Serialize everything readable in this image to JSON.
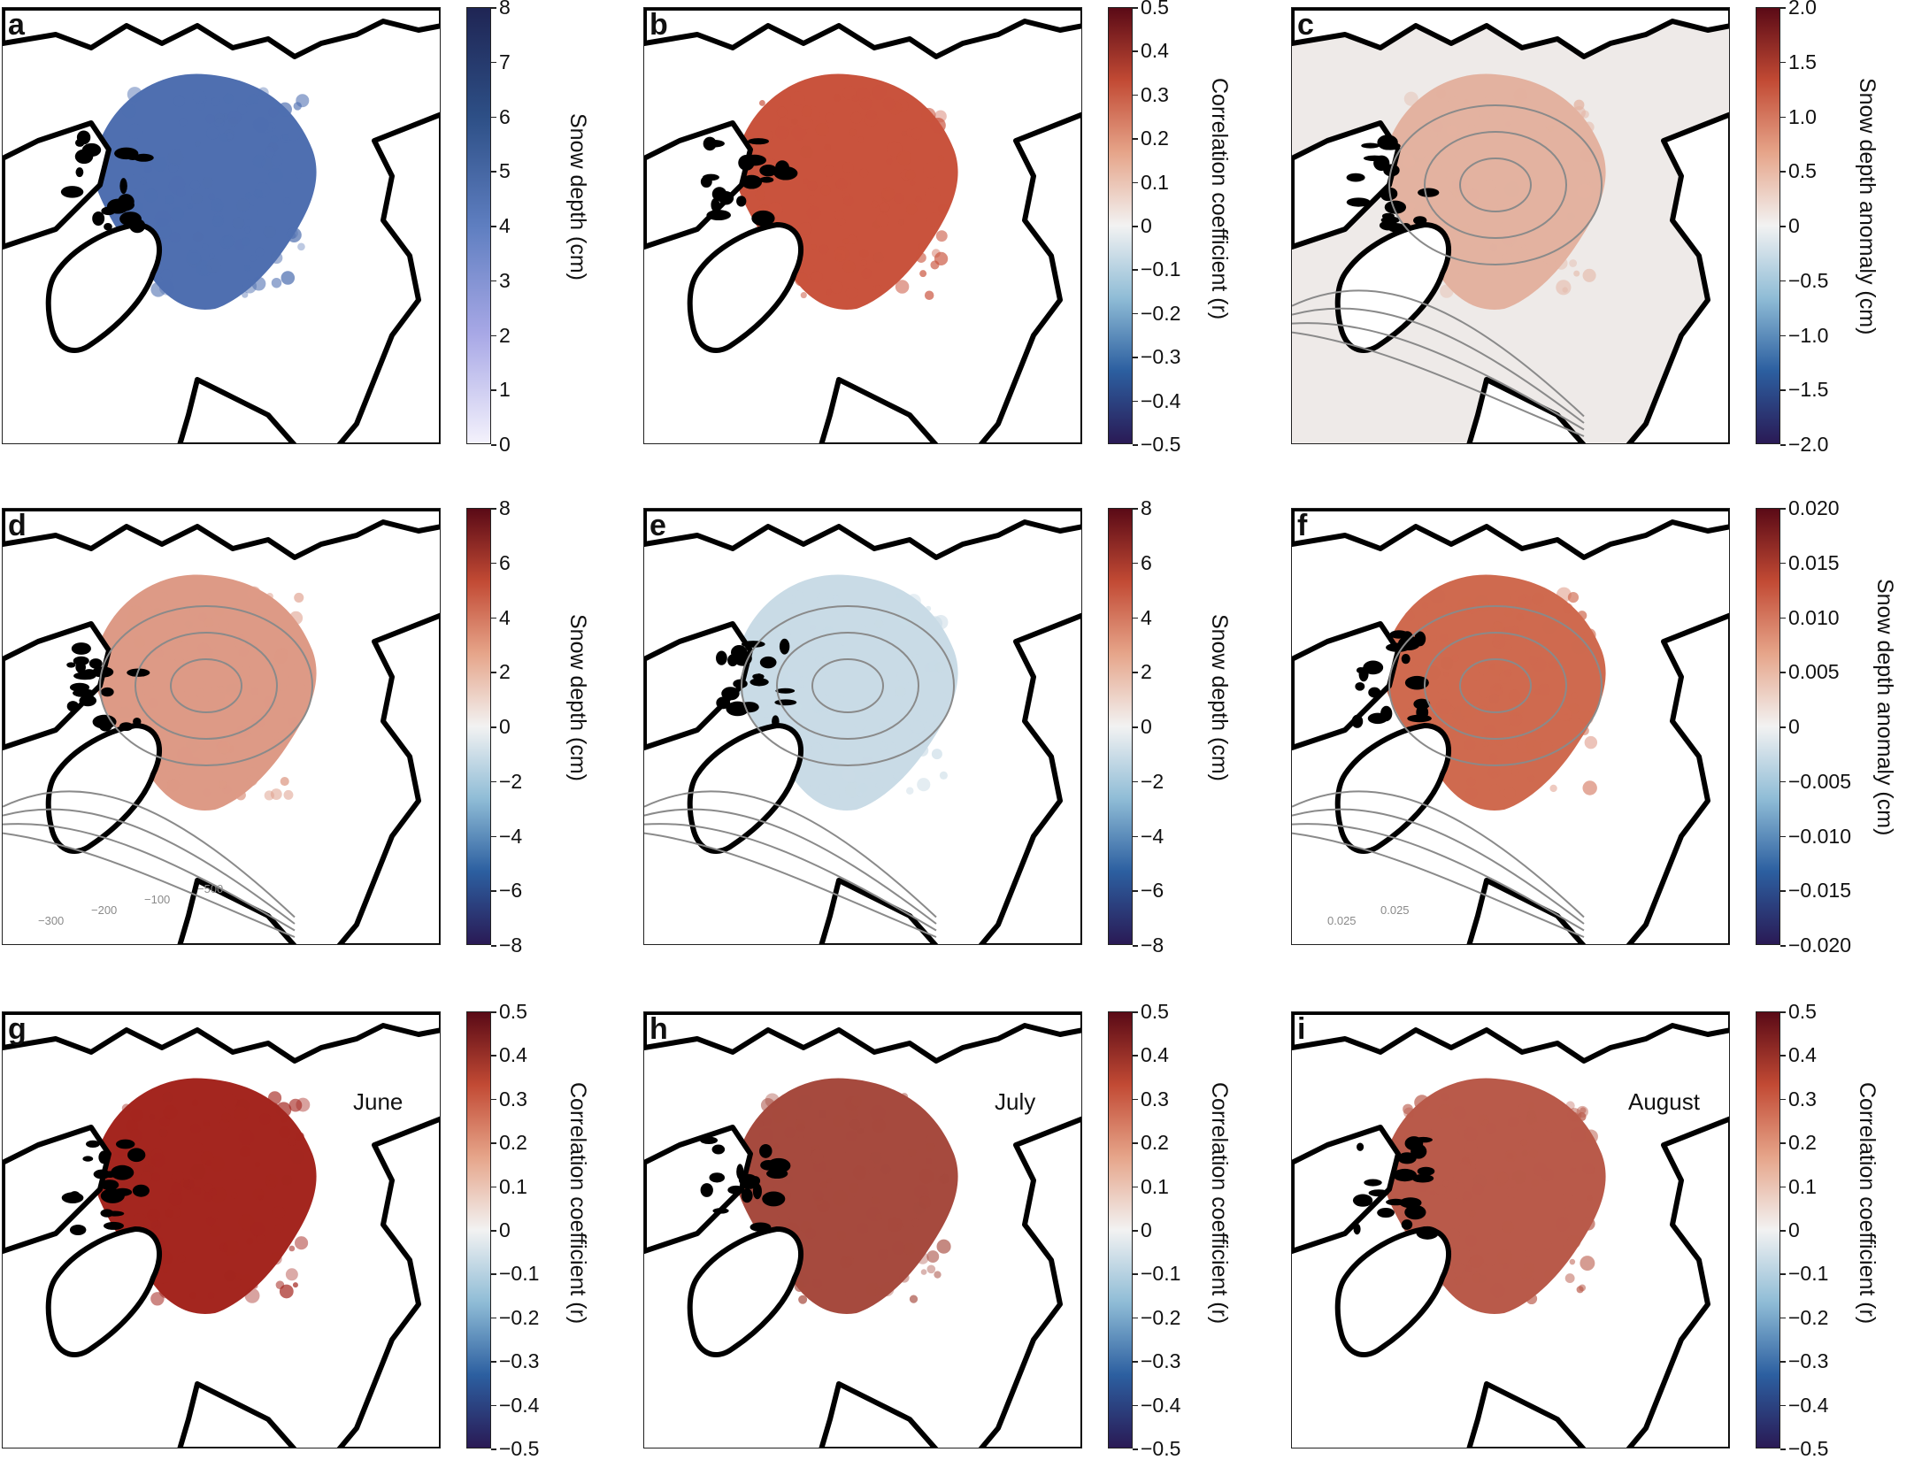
{
  "panels": [
    {
      "id": "a",
      "label": "a",
      "cbar": {
        "type": "sequential",
        "label": "Snow depth (cm)",
        "ticks": [
          "8",
          "7",
          "6",
          "5",
          "4",
          "3",
          "2",
          "1",
          "0"
        ],
        "colors": [
          "#1f2554",
          "#2d4f86",
          "#5e7ec0",
          "#a8a8e6",
          "#f4f2fc"
        ]
      },
      "contours": false,
      "month": ""
    },
    {
      "id": "b",
      "label": "b",
      "cbar": {
        "type": "diverging",
        "label": "Correlation coefficient (r)",
        "ticks": [
          "0.5",
          "0.4",
          "0.3",
          "0.2",
          "0.1",
          "0",
          "−0.1",
          "−0.2",
          "−0.3",
          "−0.4",
          "−0.5"
        ]
      },
      "contours": false,
      "month": ""
    },
    {
      "id": "c",
      "label": "c",
      "cbar": {
        "type": "diverging",
        "label": "Snow depth anomaly (cm)",
        "ticks": [
          "2.0",
          "1.5",
          "1.0",
          "0.5",
          "0",
          "−0.5",
          "−1.0",
          "−1.5",
          "−2.0"
        ]
      },
      "contours": true,
      "month": ""
    },
    {
      "id": "d",
      "label": "d",
      "cbar": {
        "type": "diverging",
        "label": "Snow depth (cm)",
        "ticks": [
          "8",
          "6",
          "4",
          "2",
          "0",
          "−2",
          "−4",
          "−6",
          "−8"
        ]
      },
      "contours": true,
      "month": "",
      "contour_labels": [
        "−300",
        "−200",
        "−100",
        "−500"
      ]
    },
    {
      "id": "e",
      "label": "e",
      "cbar": {
        "type": "diverging",
        "label": "Snow depth (cm)",
        "ticks": [
          "8",
          "6",
          "4",
          "2",
          "0",
          "−2",
          "−4",
          "−6",
          "−8"
        ]
      },
      "contours": true,
      "month": ""
    },
    {
      "id": "f",
      "label": "f",
      "cbar": {
        "type": "diverging",
        "label": "Snow depth anomaly (cm)",
        "ticks": [
          "0.020",
          "0.015",
          "0.010",
          "0.005",
          "0",
          "−0.005",
          "−0.010",
          "−0.015",
          "−0.020"
        ]
      },
      "contours": true,
      "month": "",
      "contour_labels": [
        "0.025",
        "0.025"
      ]
    },
    {
      "id": "g",
      "label": "g",
      "cbar": {
        "type": "diverging",
        "label": "Correlation coefficient (r)",
        "ticks": [
          "0.5",
          "0.4",
          "0.3",
          "0.2",
          "0.1",
          "0",
          "−0.1",
          "−0.2",
          "−0.3",
          "−0.4",
          "−0.5"
        ]
      },
      "contours": false,
      "month": "June"
    },
    {
      "id": "h",
      "label": "h",
      "cbar": {
        "type": "diverging",
        "label": "Correlation coefficient (r)",
        "ticks": [
          "0.5",
          "0.4",
          "0.3",
          "0.2",
          "0.1",
          "0",
          "−0.1",
          "−0.2",
          "−0.3",
          "−0.4",
          "−0.5"
        ]
      },
      "contours": false,
      "month": "July"
    },
    {
      "id": "i",
      "label": "i",
      "cbar": {
        "type": "diverging",
        "label": "Correlation coefficient (r)",
        "ticks": [
          "0.5",
          "0.4",
          "0.3",
          "0.2",
          "0.1",
          "0",
          "−0.1",
          "−0.2",
          "−0.3",
          "−0.4",
          "−0.5"
        ]
      },
      "contours": false,
      "month": "August"
    }
  ],
  "colors": {
    "land": "#000000",
    "coast": "#000000",
    "contour": "#8a8a8a",
    "frame": "#222222",
    "diverging": [
      "#2a1a55",
      "#2c5fa0",
      "#8fbcd6",
      "#f2f2f2",
      "#e6a58a",
      "#c24a34",
      "#5a0a16"
    ],
    "fill_a": "#4f6fb0",
    "fill_b": "#c9533d",
    "fill_c": "#e3b2a0",
    "fill_d": "#dd9a86",
    "fill_e": "#c9dbe6",
    "fill_f": "#cf6a4f",
    "fill_g": "#a4261f",
    "fill_h": "#a64a3e",
    "fill_i": "#b95a4a"
  }
}
